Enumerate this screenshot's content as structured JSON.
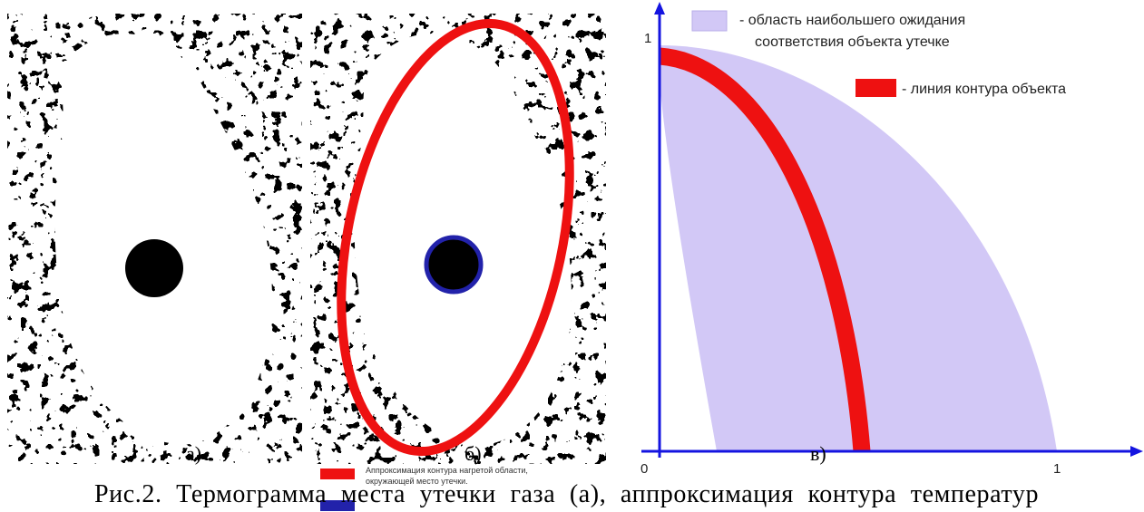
{
  "panels": [
    {
      "label": "а)"
    },
    {
      "label": "б)",
      "legend": [
        "Аппроксимация контура нагретой области,",
        "окружающей место утечки."
      ]
    },
    {
      "label": "в)",
      "legend": [
        "- область наибольшего ожидания",
        "соответствия объекта утечке",
        "- линия контура объекта"
      ],
      "axis": {
        "y_tick": "1",
        "origin": "0",
        "x_tick": "1"
      }
    }
  ],
  "caption": "Рис.2. Термограмма места утечки газа (а), аппроксимация контура температур"
}
